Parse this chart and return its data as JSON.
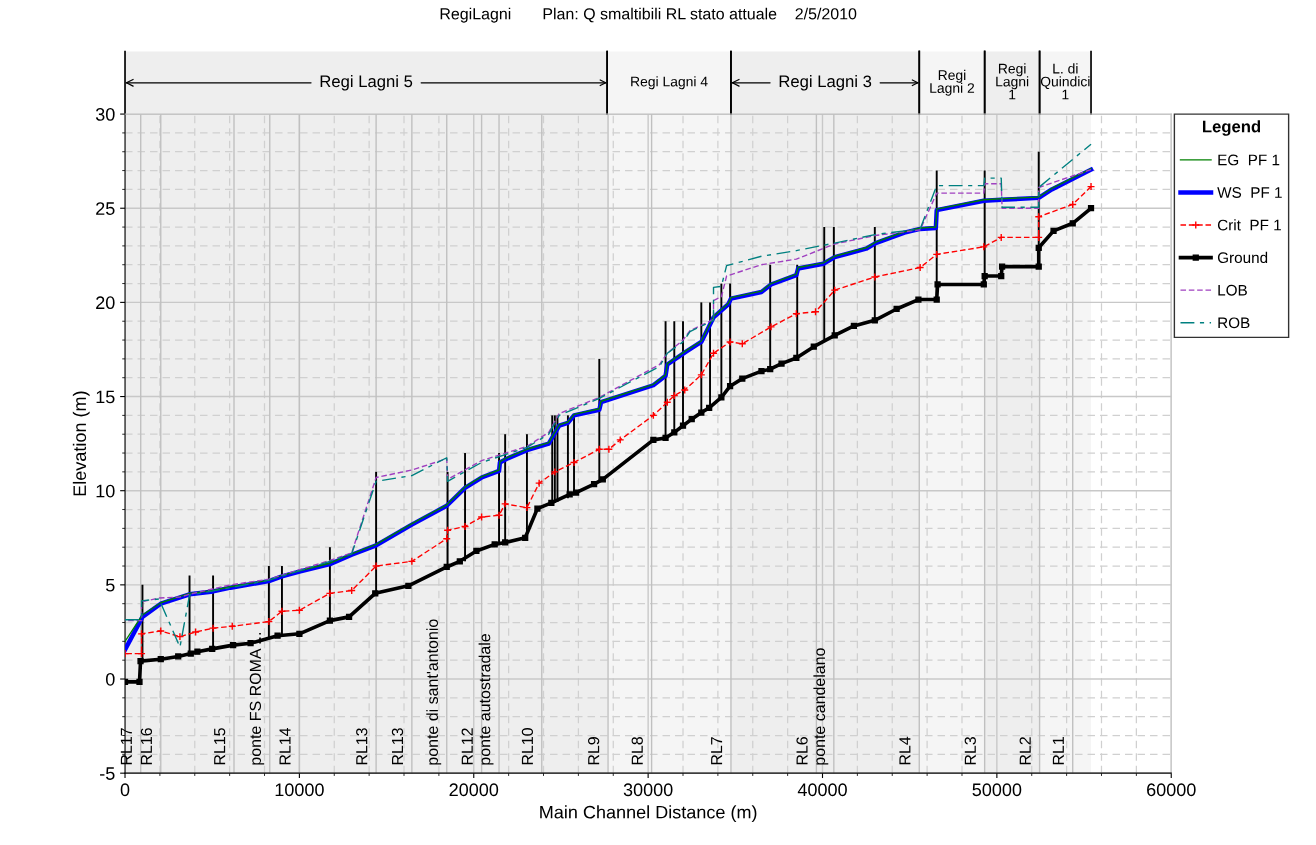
{
  "chart_data": {
    "type": "line",
    "title": "RegiLagni       Plan: Q smaltibili RL stato attuale    2/5/2010",
    "xlabel": "Main Channel Distance (m)",
    "ylabel": "Elevation (m)",
    "legend_title": "Legend",
    "legend": "right",
    "grid": true,
    "xlim": [
      0,
      60000
    ],
    "xticks": [
      0,
      10000,
      20000,
      30000,
      40000,
      50000,
      60000
    ],
    "ylim": [
      -5,
      30
    ],
    "yticks": [
      -5,
      0,
      5,
      10,
      15,
      20,
      25,
      30
    ],
    "series": [
      {
        "name": "EG  PF 1",
        "color": "#008000",
        "line_style": "solid",
        "marker": "none",
        "x": [
          0,
          1000,
          2050,
          3700,
          5050,
          6050,
          8250,
          9000,
          10000,
          11750,
          13000,
          14400,
          16450,
          18450,
          19500,
          20450,
          21450,
          21500,
          21900,
          23050,
          24300,
          24900,
          25400,
          25750,
          27200,
          27300,
          30300,
          31000,
          31100,
          32200,
          33050,
          33750,
          34600,
          34750,
          36500,
          37050,
          38500,
          38600,
          40050,
          40700,
          42500,
          43050,
          44700,
          45600,
          46500,
          46550,
          49250,
          50250,
          52400,
          53150,
          55400
        ],
        "values": [
          2.0,
          3.4,
          4.05,
          4.55,
          4.7,
          4.9,
          5.25,
          5.5,
          5.75,
          6.15,
          6.65,
          7.15,
          8.25,
          9.25,
          10.2,
          10.75,
          11.1,
          11.55,
          11.75,
          12.2,
          12.55,
          13.5,
          13.65,
          14.05,
          14.35,
          14.75,
          15.65,
          16.15,
          16.75,
          17.45,
          17.95,
          19.25,
          19.95,
          20.25,
          20.6,
          21.0,
          21.5,
          21.85,
          22.1,
          22.45,
          22.9,
          23.2,
          23.75,
          23.95,
          24.0,
          24.95,
          25.45,
          25.5,
          25.6,
          26.05,
          27.1
        ]
      },
      {
        "name": "WS  PF 1",
        "color": "#0000ff",
        "line_style": "solid",
        "marker": "none",
        "x": [
          0,
          1000,
          2050,
          3700,
          5050,
          6050,
          8250,
          9000,
          10000,
          11750,
          13000,
          14400,
          16450,
          18450,
          19500,
          20450,
          21450,
          21500,
          21900,
          23050,
          24300,
          24900,
          25400,
          25750,
          27200,
          27300,
          30300,
          31000,
          31100,
          32200,
          33050,
          33750,
          34600,
          34750,
          36500,
          37050,
          38500,
          38600,
          40050,
          40700,
          42500,
          43050,
          44700,
          45600,
          46500,
          46550,
          49250,
          50250,
          52400,
          53150,
          55400
        ],
        "values": [
          1.55,
          3.3,
          4.0,
          4.5,
          4.65,
          4.85,
          5.2,
          5.45,
          5.7,
          6.1,
          6.6,
          7.1,
          8.2,
          9.2,
          10.15,
          10.7,
          11.05,
          11.5,
          11.7,
          12.15,
          12.5,
          13.45,
          13.6,
          14.0,
          14.3,
          14.7,
          15.6,
          16.1,
          16.7,
          17.4,
          17.9,
          19.2,
          19.9,
          20.2,
          20.55,
          20.95,
          21.45,
          21.8,
          22.05,
          22.4,
          22.85,
          23.15,
          23.7,
          23.9,
          23.95,
          24.9,
          25.4,
          25.45,
          25.55,
          26.0,
          27.05
        ]
      },
      {
        "name": "Crit  PF 1",
        "color": "#ff0000",
        "line_style": "dashed",
        "marker": "cross",
        "x": [
          0,
          950,
          950,
          2050,
          3150,
          4050,
          5050,
          6150,
          8250,
          9000,
          10000,
          11750,
          13000,
          14400,
          16450,
          18450,
          18500,
          19500,
          20450,
          21450,
          21800,
          23050,
          23750,
          24650,
          25750,
          27200,
          27750,
          28400,
          30300,
          31100,
          31500,
          32100,
          33050,
          33750,
          34700,
          35400,
          37050,
          38500,
          39600,
          40700,
          43000,
          45600,
          46550,
          49250,
          50250,
          52400,
          52400,
          54350,
          55400
        ],
        "values": [
          1.35,
          1.35,
          2.4,
          2.55,
          2.25,
          2.5,
          2.7,
          2.8,
          3.05,
          3.6,
          3.65,
          4.55,
          4.7,
          6.0,
          6.25,
          7.45,
          7.9,
          8.1,
          8.6,
          8.7,
          9.3,
          9.1,
          10.4,
          11.0,
          11.5,
          12.2,
          12.2,
          12.7,
          14.0,
          14.7,
          15.05,
          15.35,
          16.15,
          17.3,
          17.9,
          17.8,
          18.7,
          19.4,
          19.5,
          20.65,
          21.35,
          21.85,
          22.55,
          22.95,
          23.45,
          23.45,
          24.55,
          25.2,
          26.15
        ]
      },
      {
        "name": "Ground",
        "color": "#000000",
        "line_style": "solid",
        "marker": "square",
        "x": [
          0,
          830,
          890,
          2050,
          3050,
          3770,
          4150,
          5000,
          6200,
          7200,
          8750,
          10000,
          11750,
          12850,
          14350,
          16250,
          18450,
          19200,
          20150,
          21200,
          21800,
          22950,
          23650,
          24450,
          25500,
          25870,
          26900,
          27400,
          30300,
          31000,
          31500,
          32000,
          32500,
          33050,
          33500,
          34200,
          34700,
          35400,
          36500,
          37000,
          37650,
          38500,
          39500,
          40700,
          41800,
          43000,
          44250,
          45500,
          46550,
          46600,
          49250,
          49300,
          50250,
          50300,
          52400,
          52400,
          53250,
          54350,
          55400
        ],
        "values": [
          -0.15,
          -0.15,
          0.95,
          1.05,
          1.2,
          1.35,
          1.45,
          1.6,
          1.8,
          1.9,
          2.3,
          2.4,
          3.1,
          3.3,
          4.55,
          4.95,
          5.95,
          6.25,
          6.8,
          7.15,
          7.25,
          7.5,
          9.05,
          9.35,
          9.8,
          9.9,
          10.35,
          10.6,
          12.7,
          12.8,
          13.1,
          13.45,
          13.8,
          14.15,
          14.4,
          14.95,
          15.55,
          15.95,
          16.35,
          16.45,
          16.75,
          17.05,
          17.65,
          18.25,
          18.75,
          19.05,
          19.65,
          20.15,
          20.15,
          20.95,
          20.95,
          21.4,
          21.4,
          21.9,
          21.9,
          22.9,
          23.8,
          24.2,
          25.0
        ]
      },
      {
        "name": "LOB",
        "color": "#a040c0",
        "line_style": "dashed",
        "marker": "none",
        "x": [
          0,
          950,
          950,
          1950,
          3150,
          3700,
          6050,
          8250,
          11750,
          13000,
          14400,
          16450,
          18450,
          18500,
          20450,
          23050,
          24300,
          24900,
          27200,
          30650,
          31100,
          32000,
          32400,
          33750,
          33750,
          34200,
          34500,
          36500,
          38500,
          40700,
          43000,
          45600,
          46550,
          49250,
          49300,
          50250,
          50300,
          52400,
          52400,
          55400
        ],
        "values": [
          3.1,
          3.1,
          4.1,
          4.3,
          4.35,
          4.5,
          5.0,
          5.3,
          6.3,
          6.7,
          10.7,
          11.1,
          11.7,
          10.6,
          11.6,
          12.35,
          13.1,
          14.1,
          14.95,
          16.7,
          17.3,
          18.0,
          18.5,
          19.1,
          20.1,
          20.3,
          21.4,
          22.0,
          22.3,
          23.1,
          23.55,
          23.85,
          25.8,
          25.8,
          26.3,
          26.3,
          25.0,
          25.0,
          26.1,
          27.05
        ]
      },
      {
        "name": "ROB",
        "color": "#008080",
        "line_style": "dashdot",
        "marker": "none",
        "x": [
          0,
          950,
          950,
          1950,
          3150,
          3700,
          6050,
          8250,
          11750,
          13000,
          14400,
          16450,
          18450,
          18500,
          20450,
          23050,
          24300,
          24900,
          27200,
          30650,
          31100,
          32000,
          32400,
          33750,
          33750,
          34200,
          34500,
          36500,
          38500,
          40700,
          43000,
          45600,
          46550,
          49250,
          49300,
          50250,
          50300,
          52400,
          52400,
          55400
        ],
        "values": [
          3.15,
          3.15,
          4.15,
          4.25,
          1.7,
          4.45,
          4.85,
          5.25,
          6.25,
          6.65,
          10.5,
          10.8,
          11.75,
          10.5,
          11.5,
          12.3,
          13.0,
          14.0,
          14.9,
          16.6,
          17.3,
          17.9,
          18.45,
          19.05,
          20.8,
          20.85,
          21.95,
          22.45,
          22.75,
          23.15,
          23.6,
          23.9,
          26.2,
          26.2,
          26.6,
          26.6,
          25.05,
          25.05,
          26.1,
          28.4
        ]
      },
      {
        "type": "bar",
        "color": "#000000",
        "x": [
          1000,
          3700,
          5050,
          8250,
          9000,
          11750,
          14400,
          18500,
          19500,
          21450,
          21800,
          23050,
          24500,
          24650,
          24800,
          25400,
          25750,
          27200,
          31000,
          31500,
          32000,
          33050,
          33550,
          34200,
          34700,
          37000,
          38550,
          40100,
          40650,
          43000,
          46550,
          49300,
          52400
        ],
        "base": [
          0.95,
          1.35,
          1.6,
          2.2,
          2.3,
          3.1,
          4.55,
          5.95,
          6.25,
          7.15,
          7.25,
          7.5,
          9.3,
          9.35,
          9.4,
          9.6,
          9.85,
          10.5,
          12.8,
          13.1,
          13.45,
          14.15,
          14.4,
          14.95,
          15.55,
          16.45,
          17.05,
          18.0,
          18.25,
          19.05,
          20.15,
          20.95,
          21.9
        ],
        "values": [
          4.05,
          4.15,
          3.9,
          3.8,
          3.7,
          3.9,
          6.45,
          5.05,
          5.75,
          4.85,
          5.75,
          5.5,
          4.7,
          4.65,
          4.6,
          4.4,
          4.15,
          6.5,
          6.2,
          5.9,
          5.55,
          5.85,
          5.6,
          6.05,
          5.45,
          5.55,
          4.95,
          6.0,
          5.75,
          4.95,
          6.85,
          6.05,
          6.1
        ]
      }
    ],
    "ref_lines": [
      {
        "axis": "x",
        "value": 900,
        "label": "RL17",
        "color": "#c0c0c0"
      },
      {
        "axis": "x",
        "value": 2050,
        "label": "RL16",
        "color": "#c0c0c0"
      },
      {
        "axis": "x",
        "value": 6250,
        "label": "RL15",
        "color": "#c0c0c0"
      },
      {
        "axis": "x",
        "value": 8300,
        "label": "ponte FS ROMA ...",
        "color": "#c0c0c0"
      },
      {
        "axis": "x",
        "value": 10000,
        "label": "RL14",
        "color": "#c0c0c0"
      },
      {
        "axis": "x",
        "value": 14400,
        "label": "RL13",
        "color": "#c0c0c0"
      },
      {
        "axis": "x",
        "value": 16450,
        "label": "RL13",
        "color": "#c0c0c0"
      },
      {
        "axis": "x",
        "value": 18450,
        "label": "ponte di sant'antonio",
        "color": "#c0c0c0"
      },
      {
        "axis": "x",
        "value": 20450,
        "label": "RL12",
        "color": "#c0c0c0"
      },
      {
        "axis": "x",
        "value": 21450,
        "label": "ponte autostradale",
        "color": "#c0c0c0"
      },
      {
        "axis": "x",
        "value": 23900,
        "label": "RL10",
        "color": "#c0c0c0"
      },
      {
        "axis": "x",
        "value": 27700,
        "label": "RL9",
        "color": "#c0c0c0"
      },
      {
        "axis": "x",
        "value": 30200,
        "label": "RL8",
        "color": "#c0c0c0"
      },
      {
        "axis": "x",
        "value": 34750,
        "label": "RL7",
        "color": "#c0c0c0"
      },
      {
        "axis": "x",
        "value": 39650,
        "label": "RL6",
        "color": "#c0c0c0"
      },
      {
        "axis": "x",
        "value": 40650,
        "label": "ponte candelano",
        "color": "#c0c0c0"
      },
      {
        "axis": "x",
        "value": 45550,
        "label": "RL4",
        "color": "#c0c0c0"
      },
      {
        "axis": "x",
        "value": 49300,
        "label": "RL3",
        "color": "#c0c0c0"
      },
      {
        "axis": "x",
        "value": 52450,
        "label": "RL2",
        "color": "#c0c0c0"
      },
      {
        "axis": "x",
        "value": 54350,
        "label": "RL1",
        "color": "#c0c0c0"
      }
    ],
    "bands": [
      {
        "axis": "x",
        "from": 0,
        "to": 27650,
        "label": "Regi Lagni 5",
        "color": "#eeeeee"
      },
      {
        "axis": "x",
        "from": 27650,
        "to": 34750,
        "label": "Regi Lagni 4",
        "color": "#f5f5f5"
      },
      {
        "axis": "x",
        "from": 34750,
        "to": 45550,
        "label": "Regi Lagni 3",
        "color": "#eeeeee"
      },
      {
        "axis": "x",
        "from": 45550,
        "to": 49300,
        "label": "Regi Lagni 2",
        "color": "#f5f5f5"
      },
      {
        "axis": "x",
        "from": 49300,
        "to": 52450,
        "label": "Regi Lagni 1",
        "color": "#eeeeee"
      },
      {
        "axis": "x",
        "from": 52450,
        "to": 55400,
        "label": "L. di Quindici 1",
        "color": "#f5f5f5"
      }
    ]
  }
}
